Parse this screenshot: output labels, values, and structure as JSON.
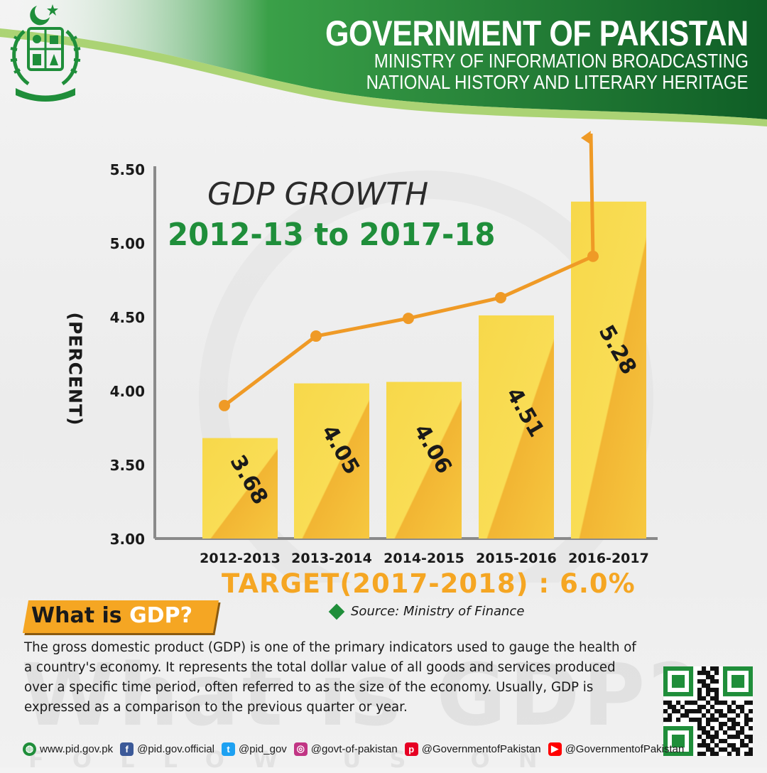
{
  "header": {
    "title": "GOVERNMENT OF PAKISTAN",
    "subtitle_line1": "MINISTRY OF INFORMATION BROADCASTING",
    "subtitle_line2": "NATIONAL HISTORY AND LITERARY HERITAGE",
    "emblem_icon": "pakistan-state-emblem"
  },
  "colors": {
    "green": "#1f8e3a",
    "dark_green": "#0f5e26",
    "bar_yellow": "#f7d84a",
    "bar_orange": "#f2b533",
    "line_orange": "#ef9a26",
    "target_orange": "#f5a623"
  },
  "chart_data": {
    "type": "bar",
    "title": "GDP GROWTH",
    "subtitle": "2012-13 to 2017-18",
    "ylabel": "(PERCENT)",
    "categories": [
      "2012-2013",
      "2013-2014",
      "2014-2015",
      "2015-2016",
      "2016-2017"
    ],
    "values": [
      3.68,
      4.05,
      4.06,
      4.51,
      5.28
    ],
    "value_labels": [
      "3.68",
      "4.05",
      "4.06",
      "4.51",
      "5.28"
    ],
    "ylim": [
      3.0,
      5.5
    ],
    "yticks": [
      "3.00",
      "3.50",
      "4.00",
      "4.50",
      "5.00",
      "5.50"
    ],
    "ytick_values": [
      3.0,
      3.5,
      4.0,
      4.5,
      5.0,
      5.5
    ],
    "trend_line": {
      "values": [
        3.9,
        4.37,
        4.49,
        4.63,
        4.91
      ],
      "arrow_end": 5.74
    },
    "grid": false,
    "legend": "none"
  },
  "target": "TARGET(2017-2018) : 6.0%",
  "source": "Source: Ministry of Finance",
  "whatis": {
    "prefix": "What is ",
    "highlight": "GDP?",
    "watermark": "What is GDP?",
    "paragraph": "The gross domestic product (GDP) is one of the primary indicators used to gauge the health of a country's economy. It represents the total dollar value of all goods and services produced over a specific time period, often referred to as the size of the economy. Usually, GDP is expressed as a comparison to the previous quarter or year."
  },
  "footer": {
    "follow_watermark": "FOLLOW US ON",
    "links": [
      {
        "icon": "globe-icon",
        "text": "www.pid.gov.pk"
      },
      {
        "icon": "facebook-icon",
        "text": "@pid.gov.official"
      },
      {
        "icon": "twitter-icon",
        "text": "@pid_gov"
      },
      {
        "icon": "instagram-icon",
        "text": "@govt-of-pakistan"
      },
      {
        "icon": "pinterest-icon",
        "text": "@GovernmentofPakistan"
      },
      {
        "icon": "youtube-icon",
        "text": "@GovernmentofPakistan"
      }
    ],
    "qr_icon": "qr-code"
  }
}
